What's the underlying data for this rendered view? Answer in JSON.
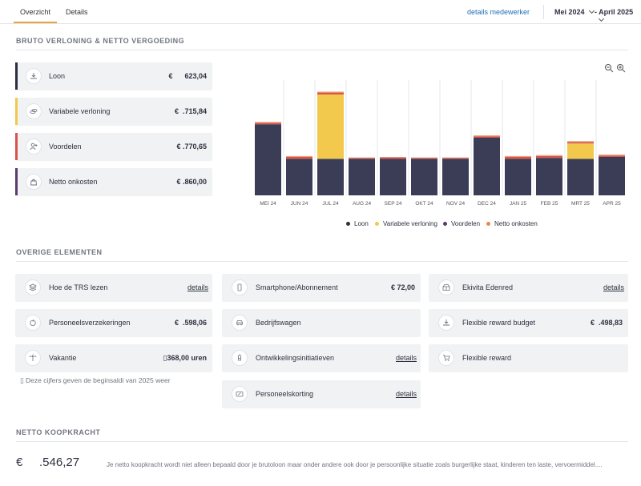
{
  "nav": {
    "tabs": [
      {
        "label": "Overzicht",
        "active": true
      },
      {
        "label": "Details",
        "active": false
      }
    ],
    "employee_link": "details medewerker",
    "period_from": "Mei 2024",
    "period_to": "- April 2025"
  },
  "colors": {
    "loon": "#3a3d55",
    "variabele": "#f2c94c",
    "voordelen": "#d9534f",
    "netto_onkosten": "#5c3c6e",
    "accent_tab": "#e8a240",
    "link": "#1f6fb5"
  },
  "section1": {
    "title": "BRUTO VERLONING & NETTO VERGOEDING",
    "cards": [
      {
        "label": "Loon",
        "currency": "€",
        "value": "623,04",
        "icon": "salary-icon"
      },
      {
        "label": "Variabele verloning",
        "currency": "€",
        "value": ".715,84",
        "icon": "coins-icon"
      },
      {
        "label": "Voordelen",
        "currency": "€",
        "value": ".770,65",
        "icon": "user-plus-icon"
      },
      {
        "label": "Netto onkosten",
        "currency": "€",
        "value": ".860,00",
        "icon": "bag-icon"
      }
    ]
  },
  "chart_data": {
    "type": "bar",
    "stacked": true,
    "categories": [
      "MEI 24",
      "JUN 24",
      "JUL 24",
      "AUG 24",
      "SEP 24",
      "OKT 24",
      "NOV 24",
      "DEC 24",
      "JAN 25",
      "FEB 25",
      "MRT 25",
      "APR 25"
    ],
    "series": [
      {
        "name": "Loon",
        "color": "#3a3d55",
        "values": [
          74,
          38,
          38,
          38,
          38,
          38,
          38,
          60,
          38,
          39,
          38,
          40
        ]
      },
      {
        "name": "Variabele verloning",
        "color": "#f2c94c",
        "values": [
          0,
          0,
          67,
          0,
          0,
          0,
          0,
          0,
          0,
          0,
          16,
          0
        ]
      },
      {
        "name": "Voordelen",
        "color": "#d9534f",
        "values": [
          1.5,
          2,
          2,
          1,
          1.5,
          1,
          1,
          1.5,
          2,
          2,
          1.5,
          1.5
        ]
      },
      {
        "name": "Netto onkosten",
        "color": "#e8a87c",
        "values": [
          1,
          1,
          1,
          0.5,
          0.5,
          0.5,
          0.5,
          1,
          1,
          1,
          1,
          1
        ]
      }
    ],
    "legend_position": "bottom",
    "grid": "vertical"
  },
  "section2": {
    "title": "OVERIGE ELEMENTEN",
    "items": [
      {
        "label": "Hoe de TRS lezen",
        "link": "details",
        "icon": "layers-icon"
      },
      {
        "label": "Smartphone/Abonnement",
        "value": "€ 72,00",
        "icon": "smartphone-icon"
      },
      {
        "label": "Ekivita Edenred",
        "link": "details",
        "icon": "gift-card-icon"
      },
      {
        "label": "Personeelsverzekeringen",
        "currency": "€",
        "value": ".598,06",
        "icon": "apple-icon"
      },
      {
        "label": "Bedrijfswagen",
        "icon": "car-icon"
      },
      {
        "label": "Flexible reward budget",
        "currency": "€",
        "value": ".498,83",
        "icon": "salary-icon"
      },
      {
        "label": "Vakantie",
        "value": "▯368,00 uren",
        "icon": "palm-tree-icon"
      },
      {
        "label": "Ontwikkelingsinitiatieven",
        "link": "details",
        "icon": "graduation-icon"
      },
      {
        "label": "Flexible reward",
        "icon": "cart-icon"
      },
      {
        "label": "Personeelskorting",
        "link": "details",
        "icon": "discount-card-icon"
      }
    ],
    "note": "▯ Deze cijfers geven de beginsaldi van 2025 weer"
  },
  "section3": {
    "title": "NETTO KOOPKRACHT",
    "currency": "€",
    "value": ".546,27",
    "description": "Je netto koopkracht wordt niet alleen bepaald door je brutoloon maar onder andere ook door je persoonlijke situatie zoals burgerlijke staat, kinderen ten laste, vervoermiddel...."
  }
}
